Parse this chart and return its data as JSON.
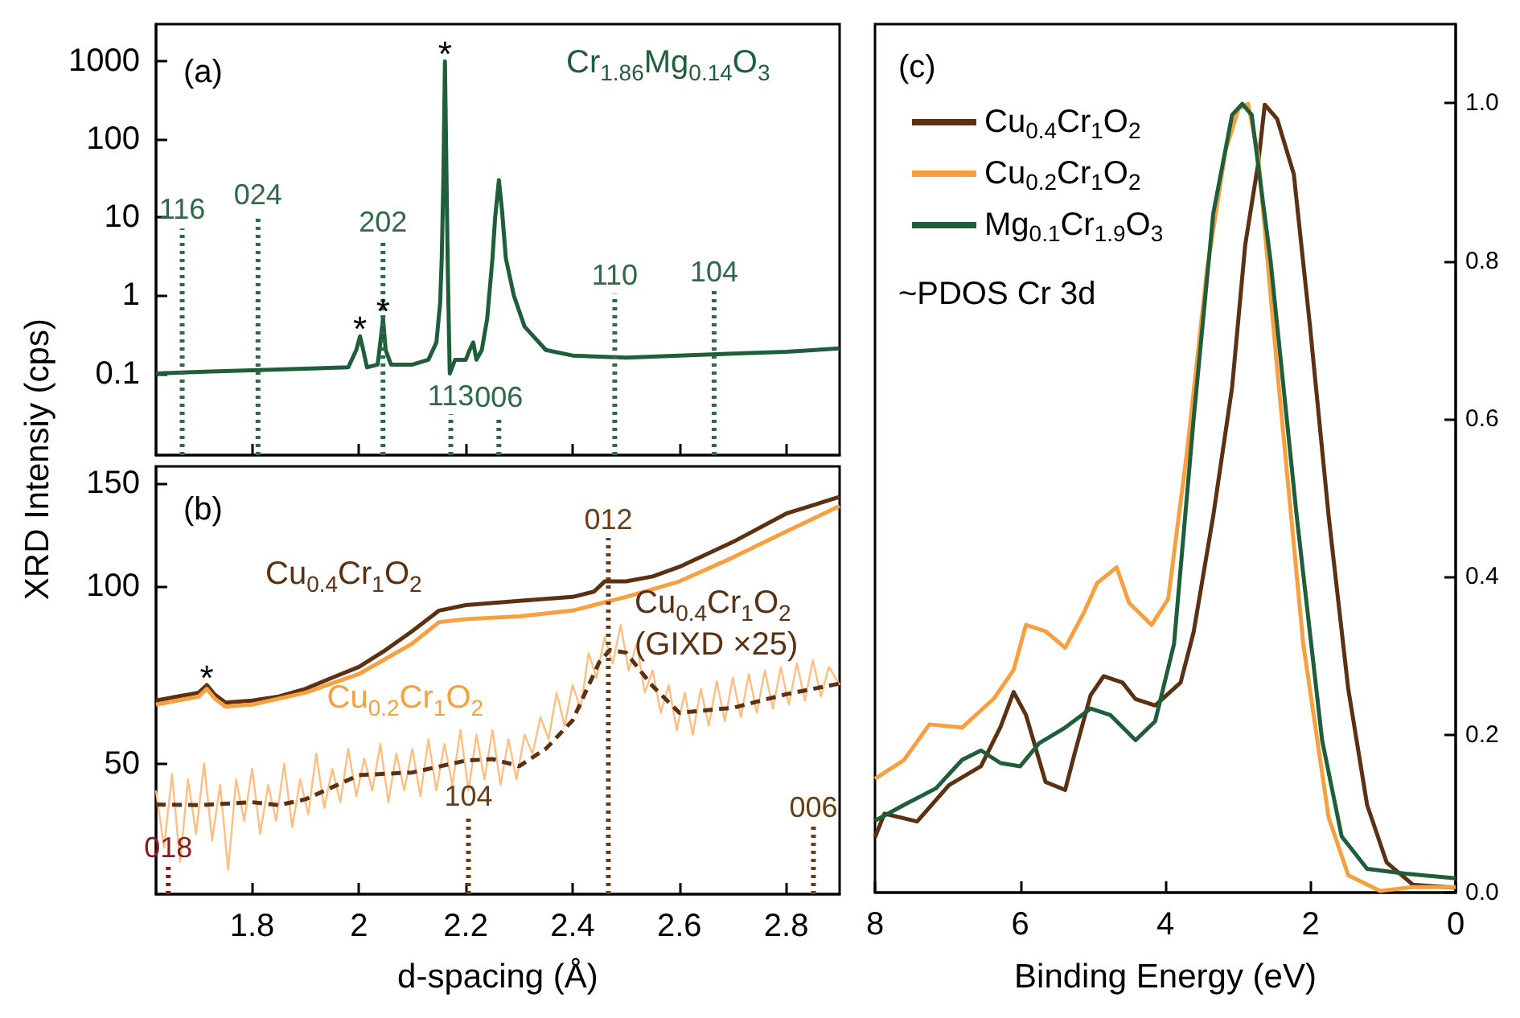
{
  "chart_data": [
    {
      "type": "line",
      "ylabel": "XRD Intensiy (cps)",
      "log": "y",
      "xlim": [
        1.62,
        2.9
      ],
      "xticks": [
        1.8,
        2.0,
        2.2,
        2.4,
        2.6,
        2.8
      ],
      "ylim": [
        0.009,
        3000
      ],
      "yticks": [
        0.1,
        1,
        10,
        100,
        1000
      ],
      "tick_labels": "y",
      "marker": "none",
      "grid": false,
      "legend": false,
      "annotations": [
        "(a)",
        {
          "text": "*",
          "x": 2.002,
          "y": 0.3
        },
        {
          "text": "*",
          "x": 2.045,
          "y": 0.5
        },
        {
          "text": "*",
          "x": 2.161,
          "y": 1000
        }
      ],
      "series": [
        {
          "name": "Cr$_{1.86}$Mg$_{0.14}$O$_{3}$",
          "color": "#1e5e3a",
          "x": [
            1.62,
            1.7,
            1.8,
            1.9,
            1.98,
            1.995,
            2.002,
            2.008,
            2.015,
            2.035,
            2.04,
            2.045,
            2.05,
            2.06,
            2.1,
            2.13,
            2.145,
            2.152,
            2.155,
            2.158,
            2.161,
            2.164,
            2.166,
            2.168,
            2.17,
            2.18,
            2.2,
            2.207,
            2.214,
            2.22,
            2.23,
            2.24,
            2.25,
            2.255,
            2.262,
            2.268,
            2.275,
            2.29,
            2.31,
            2.35,
            2.4,
            2.5,
            2.6,
            2.7,
            2.8,
            2.9
          ],
          "values": [
            0.1,
            0.105,
            0.11,
            0.115,
            0.12,
            0.2,
            0.3,
            0.2,
            0.12,
            0.13,
            0.25,
            0.5,
            0.2,
            0.13,
            0.13,
            0.15,
            0.25,
            0.8,
            3,
            30,
            1000,
            30,
            3,
            0.5,
            0.1,
            0.15,
            0.15,
            0.2,
            0.25,
            0.15,
            0.2,
            0.5,
            3,
            10,
            30,
            12,
            3,
            1,
            0.4,
            0.2,
            0.17,
            0.16,
            0.17,
            0.18,
            0.19,
            0.21
          ]
        },
        {
          "name": "116",
          "color": "#2d6a45",
          "line_style": "dotted",
          "x": [
            1.669,
            1.669
          ],
          "values": [
            0.009,
            7.2
          ]
        },
        {
          "name": "024",
          "color": "#2d6a45",
          "line_style": "dotted",
          "x": [
            1.811,
            1.811
          ],
          "values": [
            0.009,
            11
          ]
        },
        {
          "name": "202",
          "color": "#2d6a45",
          "line_style": "dotted",
          "x": [
            2.045,
            2.045
          ],
          "values": [
            0.009,
            4.9
          ]
        },
        {
          "name": "113",
          "color": "#2d6a45",
          "line_style": "dotted",
          "x": [
            2.172,
            2.172
          ],
          "values": [
            0.009,
            0.03
          ]
        },
        {
          "name": "006",
          "color": "#2d6a45",
          "line_style": "dotted",
          "x": [
            2.262,
            2.262
          ],
          "values": [
            0.009,
            0.028
          ]
        },
        {
          "name": "110",
          "color": "#2d6a45",
          "line_style": "dotted",
          "x": [
            2.479,
            2.479
          ],
          "values": [
            0.009,
            1.05
          ]
        },
        {
          "name": "104",
          "color": "#2d6a45",
          "line_style": "dotted",
          "x": [
            2.665,
            2.665
          ],
          "values": [
            0.009,
            1.15
          ]
        }
      ]
    },
    {
      "type": "line",
      "xlabel": "d-spacing (Å)",
      "log": "y",
      "xlim": [
        1.62,
        2.9
      ],
      "xticks": [
        1.8,
        2.0,
        2.2,
        2.4,
        2.6,
        2.8
      ],
      "ylim": [
        30,
        160
      ],
      "yticks": [
        50,
        100,
        150
      ],
      "marker": "none",
      "grid": false,
      "legend": false,
      "annotations": [
        "(b)",
        {
          "text": "*",
          "x": 1.715,
          "y": 68
        }
      ],
      "series": [
        {
          "name": "Cu$_{0.4}$Cr$_{1}$O$_{2}$",
          "color": "#5c3010",
          "x": [
            1.62,
            1.66,
            1.7,
            1.715,
            1.73,
            1.75,
            1.8,
            1.85,
            1.9,
            1.95,
            2.0,
            2.05,
            2.1,
            2.15,
            2.2,
            2.3,
            2.4,
            2.44,
            2.46,
            2.5,
            2.55,
            2.6,
            2.7,
            2.8,
            2.9
          ],
          "values": [
            64,
            65,
            66,
            68,
            65.5,
            63.5,
            64,
            65,
            67,
            70,
            73,
            78,
            84,
            91,
            93,
            94.5,
            96,
            98,
            102,
            102,
            104,
            108,
            119,
            133,
            142
          ]
        },
        {
          "name": "Cu$_{0.2}$Cr$_{1}$O$_{2}$",
          "color": "#f7a040",
          "x": [
            1.62,
            1.66,
            1.7,
            1.715,
            1.73,
            1.75,
            1.8,
            1.9,
            2.0,
            2.1,
            2.15,
            2.2,
            2.3,
            2.4,
            2.46,
            2.5,
            2.6,
            2.7,
            2.8,
            2.9
          ],
          "values": [
            63,
            64,
            65,
            67,
            64.5,
            62.5,
            63,
            66,
            71,
            80,
            87,
            88,
            89,
            91,
            94,
            96,
            102,
            112,
            124,
            137
          ]
        },
        {
          "color": "#ffbe80",
          "x": [
            1.62,
            1.635,
            1.65,
            1.665,
            1.68,
            1.695,
            1.71,
            1.725,
            1.74,
            1.755,
            1.77,
            1.785,
            1.8,
            1.815,
            1.83,
            1.845,
            1.86,
            1.875,
            1.89,
            1.905,
            1.92,
            1.935,
            1.95,
            1.965,
            1.98,
            1.995,
            2.01,
            2.025,
            2.04,
            2.055,
            2.07,
            2.085,
            2.1,
            2.115,
            2.13,
            2.145,
            2.16,
            2.175,
            2.19,
            2.205,
            2.22,
            2.235,
            2.25,
            2.265,
            2.28,
            2.295,
            2.31,
            2.325,
            2.34,
            2.355,
            2.37,
            2.385,
            2.4,
            2.415,
            2.43,
            2.445,
            2.46,
            2.475,
            2.49,
            2.505,
            2.52,
            2.535,
            2.55,
            2.565,
            2.58,
            2.595,
            2.61,
            2.625,
            2.64,
            2.655,
            2.67,
            2.685,
            2.7,
            2.715,
            2.73,
            2.745,
            2.76,
            2.775,
            2.79,
            2.805,
            2.82,
            2.835,
            2.85,
            2.865,
            2.88,
            2.9
          ],
          "values": [
            45,
            36,
            48,
            34,
            47,
            38,
            50,
            37,
            46,
            33,
            47,
            40,
            49,
            38,
            46,
            40,
            50,
            39,
            47,
            41,
            52,
            42,
            49,
            43,
            53,
            44,
            51,
            45,
            54,
            43,
            52,
            45,
            53,
            44,
            55,
            45,
            54,
            46,
            57,
            45,
            56,
            47,
            57,
            46,
            55,
            47,
            56,
            52,
            60,
            55,
            66,
            58,
            68,
            62,
            77,
            70,
            82,
            74,
            86,
            72,
            80,
            66,
            72,
            61,
            68,
            57,
            66,
            56,
            67,
            58,
            69,
            59,
            70,
            60,
            71,
            61,
            72,
            62,
            73,
            63,
            74,
            64,
            75,
            65,
            73,
            68
          ]
        },
        {
          "name": "Cu$_{0.4}$Cr$_{1}$O$_{2}$ (GIXD ×25)",
          "color": "#5c3010",
          "line_style": "dashed",
          "x": [
            1.62,
            1.7,
            1.8,
            1.85,
            1.9,
            2.0,
            2.1,
            2.2,
            2.25,
            2.3,
            2.35,
            2.4,
            2.45,
            2.47,
            2.5,
            2.55,
            2.6,
            2.7,
            2.8,
            2.9
          ],
          "values": [
            42.6,
            42.5,
            43,
            42.5,
            43.5,
            47.8,
            48.3,
            50.6,
            50.9,
            49.5,
            53,
            59.2,
            74.4,
            78,
            77.2,
            67.7,
            61,
            62.2,
            65.6,
            68.4
          ]
        },
        {
          "name": "018",
          "color": "#8b1a1a",
          "line_style": "dotted",
          "x": [
            1.643,
            1.643
          ],
          "values": [
            30,
            33.5
          ]
        },
        {
          "name": "104",
          "color": "#6b3d14",
          "line_style": "dotted",
          "x": [
            2.205,
            2.205
          ],
          "values": [
            30,
            40.8
          ]
        },
        {
          "name": "012",
          "color": "#6b3d14",
          "line_style": "dotted",
          "x": [
            2.467,
            2.467
          ],
          "values": [
            30,
            120.9
          ]
        },
        {
          "name": "006",
          "color": "#6b3d14",
          "line_style": "dotted",
          "x": [
            2.851,
            2.851
          ],
          "values": [
            30,
            39.2
          ]
        }
      ]
    },
    {
      "type": "line",
      "xlabel": "Binding Energy (eV)",
      "xlim": [
        8,
        0
      ],
      "xticks": [
        8,
        6,
        4,
        2,
        0
      ],
      "ylim": [
        0,
        1.1
      ],
      "yticks": [
        {
          "value": 0,
          "label": "0.0"
        },
        {
          "value": 0.2,
          "label": "0.2"
        },
        {
          "value": 0.4,
          "label": "0.4"
        },
        {
          "value": 0.6,
          "label": "0.6"
        },
        {
          "value": 0.8,
          "label": "0.8"
        },
        {
          "value": 1,
          "label": "1.0"
        }
      ],
      "marker": "none",
      "grid": false,
      "legend": "top left",
      "annotations": [
        "(c)",
        "~PDOS Cr 3d"
      ],
      "series": [
        {
          "name": "Cu$_{0.4}$Cr$_{1}$O$_{2}$",
          "color": "#5c3010",
          "x": [
            8,
            7.87,
            7.42,
            6.98,
            6.54,
            6.27,
            6.09,
            5.92,
            5.65,
            5.38,
            5.25,
            5.03,
            4.85,
            4.59,
            4.41,
            4.14,
            3.79,
            3.61,
            3.34,
            3.08,
            2.9,
            2.72,
            2.63,
            2.46,
            2.23,
            2.01,
            1.75,
            1.48,
            1.22,
            0.95,
            0.59,
            0
          ],
          "values": [
            0.07,
            0.1,
            0.09,
            0.136,
            0.16,
            0.21,
            0.254,
            0.225,
            0.14,
            0.13,
            0.176,
            0.25,
            0.274,
            0.266,
            0.245,
            0.237,
            0.266,
            0.33,
            0.477,
            0.64,
            0.82,
            0.924,
            0.998,
            0.98,
            0.91,
            0.72,
            0.477,
            0.258,
            0.111,
            0.038,
            0.01,
            0.006
          ]
        },
        {
          "name": "Cu$_{0.2}$Cr$_{1}$O$_{2}$",
          "color": "#f7a040",
          "x": [
            8,
            7.6,
            7.25,
            6.8,
            6.36,
            6.09,
            5.92,
            5.65,
            5.38,
            5.12,
            4.94,
            4.67,
            4.5,
            4.19,
            3.96,
            3.7,
            3.43,
            3.17,
            2.99,
            2.86,
            2.72,
            2.46,
            2.1,
            1.75,
            1.48,
            1.04,
            0.59,
            0
          ],
          "values": [
            0.144,
            0.168,
            0.213,
            0.209,
            0.246,
            0.282,
            0.339,
            0.331,
            0.31,
            0.355,
            0.392,
            0.412,
            0.367,
            0.339,
            0.372,
            0.559,
            0.786,
            0.94,
            0.993,
            0.999,
            0.933,
            0.664,
            0.315,
            0.095,
            0.022,
            0.002,
            0.007,
            0.007
          ]
        },
        {
          "name": "Mg$_{0.1}$Cr$_{1.9}$O$_{3}$",
          "color": "#1f5e3a",
          "x": [
            8,
            7.6,
            7.16,
            6.8,
            6.54,
            6.27,
            6.0,
            5.74,
            5.38,
            5.03,
            4.76,
            4.41,
            4.14,
            3.88,
            3.61,
            3.34,
            3.08,
            2.94,
            2.81,
            2.55,
            2.19,
            1.84,
            1.57,
            1.22,
            0.69,
            0
          ],
          "values": [
            0.091,
            0.111,
            0.132,
            0.168,
            0.18,
            0.164,
            0.16,
            0.189,
            0.209,
            0.233,
            0.225,
            0.193,
            0.217,
            0.315,
            0.6,
            0.86,
            0.985,
            0.999,
            0.985,
            0.8,
            0.477,
            0.193,
            0.071,
            0.03,
            0.024,
            0.018
          ]
        }
      ]
    }
  ]
}
